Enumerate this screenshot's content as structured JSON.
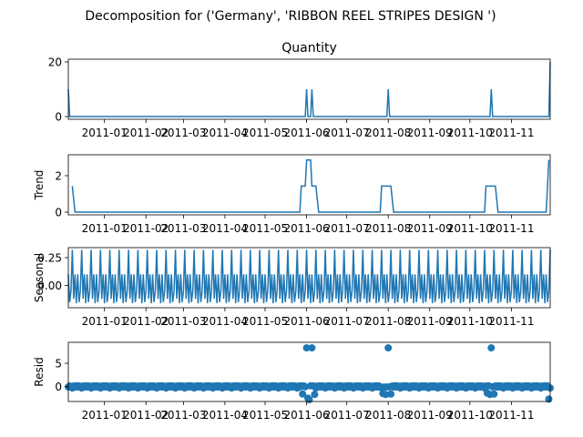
{
  "figure": {
    "suptitle": "Decomposition for ('Germany', 'RIBBON REEL STRIPES DESIGN ')"
  },
  "colors": {
    "line": "#1f77b4",
    "axes": "#000000",
    "zero_line": "#000000"
  },
  "chart_data": [
    {
      "type": "line",
      "name": "observed",
      "title": "Quantity",
      "ylabel": "",
      "x_range": [
        "2010-12-05",
        "2011-11-30"
      ],
      "ylim": [
        -1,
        21
      ],
      "yticks": [
        0,
        20
      ],
      "xtick_labels": [
        "2011-01",
        "2011-02",
        "2011-03",
        "2011-04",
        "2011-05",
        "2011-06",
        "2011-07",
        "2011-08",
        "2011-09",
        "2011-10",
        "2011-11"
      ],
      "spikes": [
        {
          "date": "2011-06-01",
          "value": 10
        },
        {
          "date": "2011-06-05",
          "value": 10
        },
        {
          "date": "2011-08-01",
          "value": 10
        },
        {
          "date": "2011-10-17",
          "value": 10
        }
      ],
      "start_value": 10,
      "end_value": 20
    },
    {
      "type": "line",
      "name": "trend",
      "title": "",
      "ylabel": "Trend",
      "x_range": [
        "2010-12-05",
        "2011-11-30"
      ],
      "ylim": [
        -0.15,
        3.15
      ],
      "yticks": [
        0,
        2
      ],
      "xtick_labels": [
        "2011-01",
        "2011-02",
        "2011-03",
        "2011-04",
        "2011-05",
        "2011-06",
        "2011-07",
        "2011-08",
        "2011-09",
        "2011-10",
        "2011-11"
      ],
      "points": [
        [
          "2010-12-08",
          1.43
        ],
        [
          "2010-12-10",
          0
        ],
        [
          "2011-05-27",
          0
        ],
        [
          "2011-05-28",
          1.43
        ],
        [
          "2011-05-31",
          1.43
        ],
        [
          "2011-06-01",
          2.86
        ],
        [
          "2011-06-04",
          2.86
        ],
        [
          "2011-06-05",
          1.43
        ],
        [
          "2011-06-08",
          1.43
        ],
        [
          "2011-06-10",
          0
        ],
        [
          "2011-07-26",
          0
        ],
        [
          "2011-07-27",
          1.43
        ],
        [
          "2011-08-03",
          1.43
        ],
        [
          "2011-08-05",
          0
        ],
        [
          "2011-10-12",
          0
        ],
        [
          "2011-10-13",
          1.43
        ],
        [
          "2011-10-20",
          1.43
        ],
        [
          "2011-10-22",
          0
        ],
        [
          "2011-11-27",
          0
        ],
        [
          "2011-11-29",
          2.86
        ]
      ]
    },
    {
      "type": "line",
      "name": "seasonal",
      "title": "",
      "ylabel": "Seasonal",
      "x_range": [
        "2010-12-05",
        "2011-11-30"
      ],
      "ylim": [
        -0.2,
        0.34
      ],
      "yticks": [
        -0.0,
        0.25
      ],
      "ytick_labels": [
        "0.00",
        "0.25"
      ],
      "xtick_labels": [
        "2011-01",
        "2011-02",
        "2011-03",
        "2011-04",
        "2011-05",
        "2011-06",
        "2011-07",
        "2011-08",
        "2011-09",
        "2011-10",
        "2011-11"
      ],
      "period_days": 7,
      "start_date": "2010-12-05",
      "weekly_pattern": [
        0.1,
        -0.15,
        -0.05,
        0.32,
        -0.12,
        0.1,
        -0.16
      ]
    },
    {
      "type": "scatter",
      "name": "resid",
      "title": "",
      "ylabel": "Resid",
      "x_range": [
        "2010-12-05",
        "2011-11-30"
      ],
      "ylim": [
        -3.2,
        9.5
      ],
      "yticks": [
        0,
        5
      ],
      "xtick_labels": [
        "2011-01",
        "2011-02",
        "2011-03",
        "2011-04",
        "2011-05",
        "2011-06",
        "2011-07",
        "2011-08",
        "2011-09",
        "2011-10",
        "2011-11"
      ],
      "outliers_high": [
        {
          "date": "2011-06-01",
          "value": 8.3
        },
        {
          "date": "2011-06-05",
          "value": 8.3
        },
        {
          "date": "2011-08-01",
          "value": 8.3
        },
        {
          "date": "2011-10-17",
          "value": 8.3
        }
      ],
      "dips": [
        {
          "date": "2011-05-29",
          "value": -1.6
        },
        {
          "date": "2011-06-02",
          "value": -2.5
        },
        {
          "date": "2011-06-03",
          "value": -2.8
        },
        {
          "date": "2011-06-07",
          "value": -1.7
        },
        {
          "date": "2011-07-28",
          "value": -1.5
        },
        {
          "date": "2011-07-30",
          "value": -1.7
        },
        {
          "date": "2011-08-03",
          "value": -1.6
        },
        {
          "date": "2011-10-14",
          "value": -1.4
        },
        {
          "date": "2011-10-16",
          "value": -1.7
        },
        {
          "date": "2011-10-19",
          "value": -1.6
        },
        {
          "date": "2011-11-29",
          "value": -2.7
        }
      ]
    }
  ]
}
